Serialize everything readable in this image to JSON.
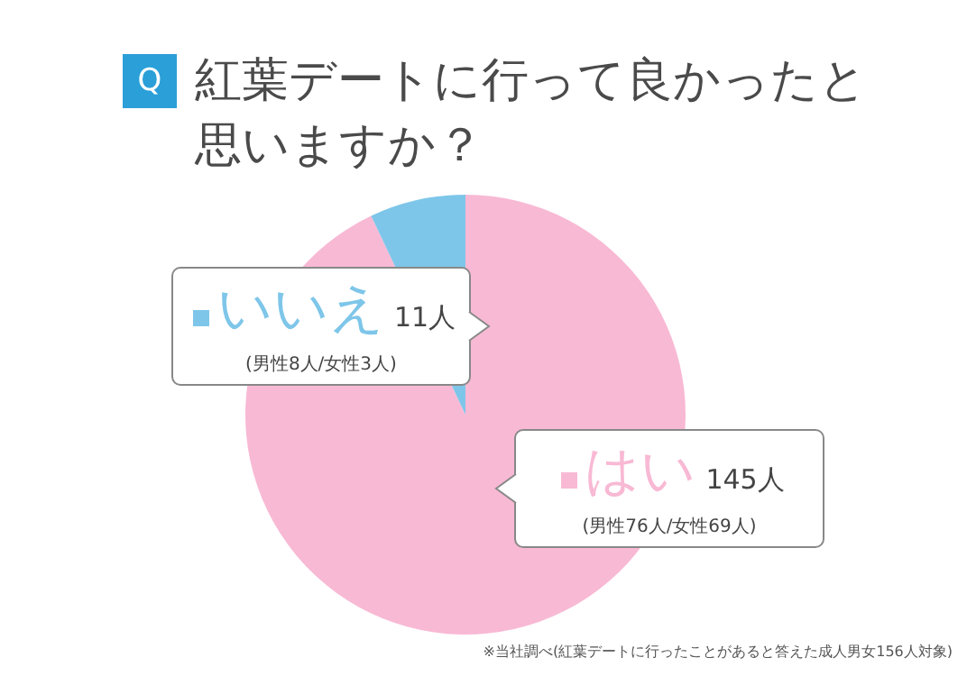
{
  "chart_data": {
    "type": "pie",
    "title": "紅葉デートに行って良かったと思いますか？",
    "categories": [
      "はい",
      "いいえ"
    ],
    "values": [
      145,
      11
    ],
    "colors": [
      "#f8b9d4",
      "#7ec6e9"
    ],
    "legend": "left",
    "value_labels": [
      "145人",
      "11人"
    ],
    "annotations": [
      "Q",
      "(男性76人/女性69人)",
      "(男性8人/女性3人)",
      "※当社調べ(紅葉デートに行ったことがあると答えた成人男女156人対象)"
    ]
  }
}
